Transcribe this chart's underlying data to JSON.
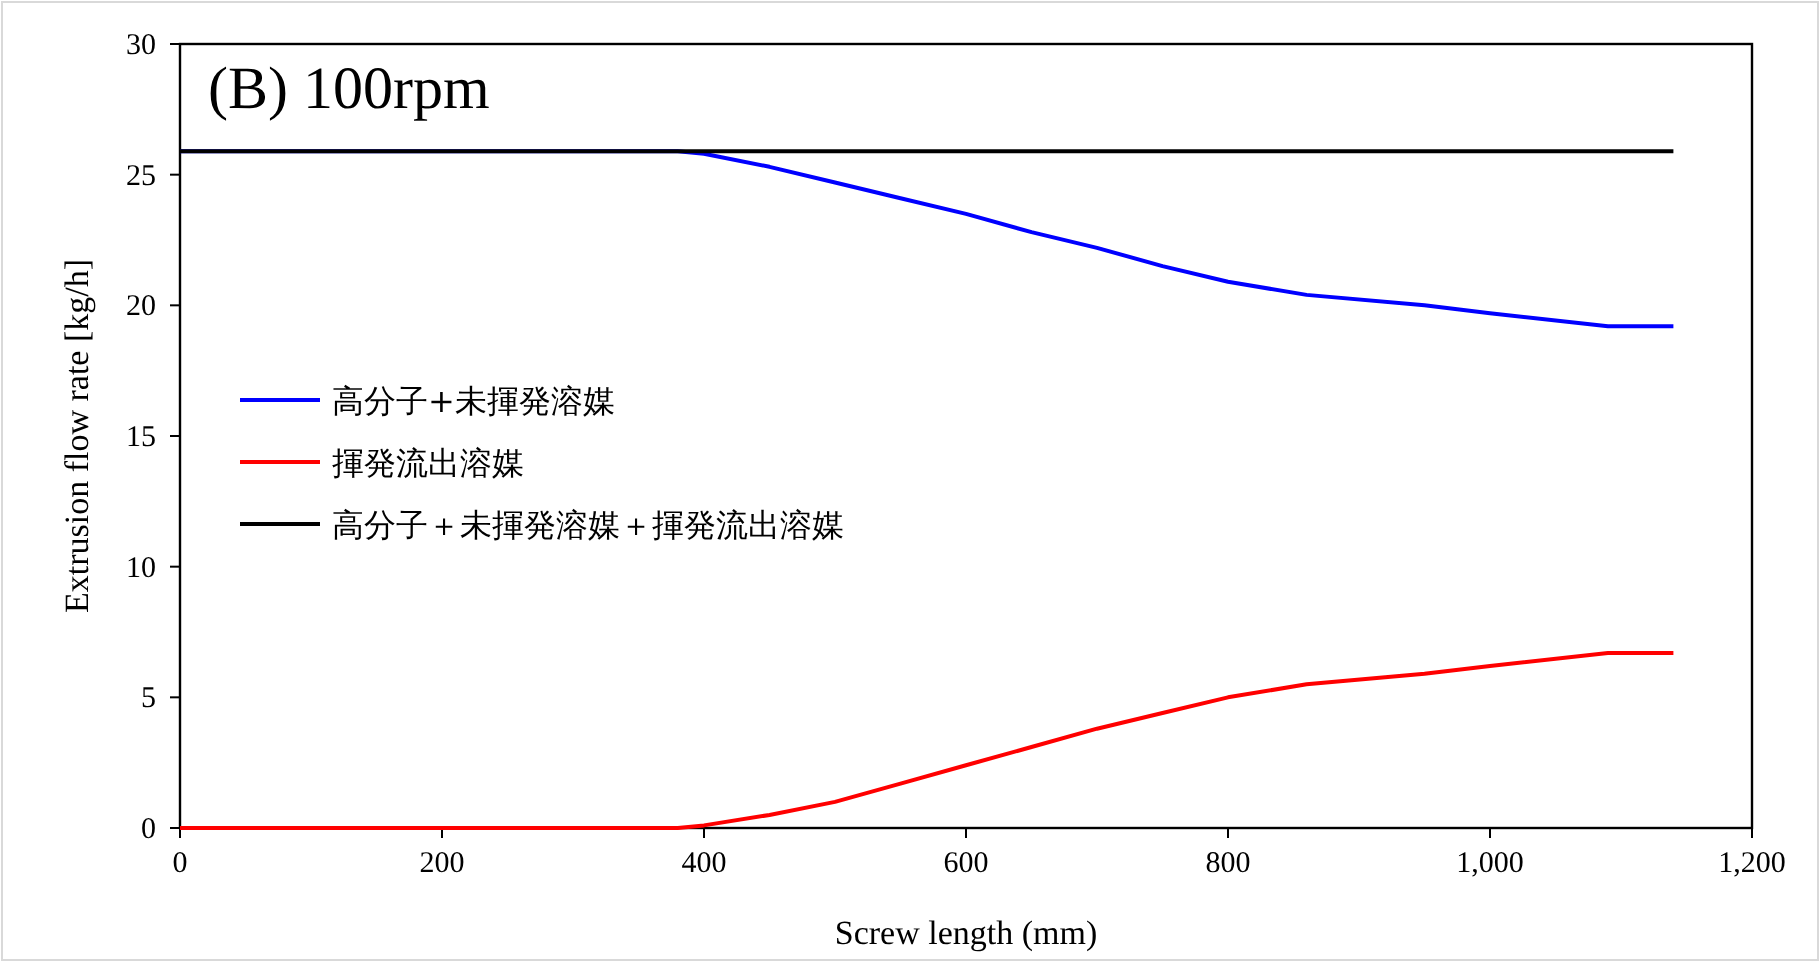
{
  "chart_data": {
    "type": "line",
    "title": "(B) 100rpm",
    "xlabel": "Screw length (mm)",
    "ylabel": "Extrusion flow rate [kg/h]",
    "xlim": [
      0,
      1200
    ],
    "xticks": [
      0,
      200,
      400,
      600,
      800,
      {
        "value": 1000,
        "label": "1,000"
      },
      {
        "value": 1200,
        "label": "1,200"
      }
    ],
    "ylim": [
      0,
      30
    ],
    "yticks": [
      0,
      5,
      10,
      15,
      20,
      25,
      30
    ],
    "grid": false,
    "legend": "left",
    "series": [
      {
        "name": "高分子+未揮発溶媒",
        "color": "#0000ff",
        "x": [
          0,
          380,
          400,
          450,
          500,
          550,
          600,
          650,
          700,
          750,
          800,
          860,
          950,
          1000,
          1090,
          1140
        ],
        "values": [
          25.9,
          25.9,
          25.8,
          25.3,
          24.7,
          24.1,
          23.5,
          22.8,
          22.2,
          21.5,
          20.9,
          20.4,
          20.0,
          19.7,
          19.2,
          19.2
        ]
      },
      {
        "name": "揮発流出溶媒",
        "color": "#ff0000",
        "x": [
          0,
          380,
          400,
          450,
          500,
          550,
          600,
          650,
          700,
          750,
          800,
          860,
          950,
          1000,
          1090,
          1140
        ],
        "values": [
          0,
          0,
          0.1,
          0.5,
          1.0,
          1.7,
          2.4,
          3.1,
          3.8,
          4.4,
          5.0,
          5.5,
          5.9,
          6.2,
          6.7,
          6.7
        ]
      },
      {
        "name": "高分子＋未揮発溶媒＋揮発流出溶媒",
        "color": "#000000",
        "x": [
          0,
          1140
        ],
        "values": [
          25.9,
          25.9
        ]
      }
    ]
  }
}
